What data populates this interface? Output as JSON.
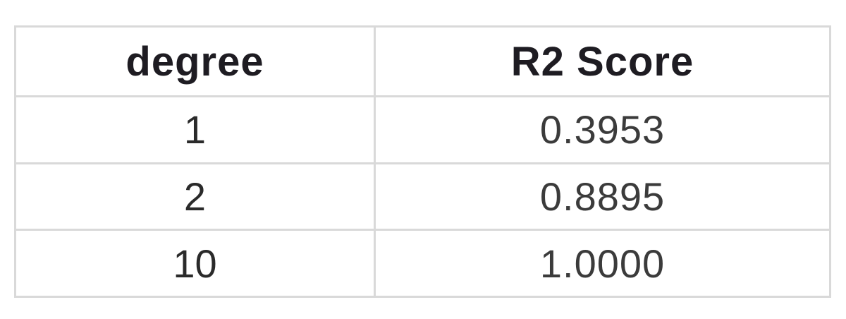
{
  "table": {
    "headers": [
      "degree",
      "R2 Score"
    ],
    "rows": [
      {
        "degree": "1",
        "r2": "0.3953"
      },
      {
        "degree": "2",
        "r2": "0.8895"
      },
      {
        "degree": "10",
        "r2": "1.0000"
      }
    ]
  },
  "colors": {
    "border": "#d9d9d9",
    "header_text": "#1e1c22",
    "body_text": "#2a2a2a"
  }
}
